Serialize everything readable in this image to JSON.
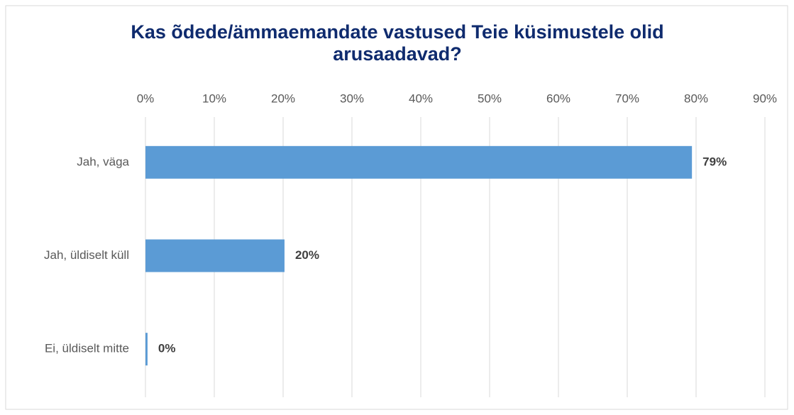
{
  "chart_data": {
    "type": "bar",
    "orientation": "horizontal",
    "title": "Kas õdede/ämmaemandate vastused Teie küsimustele olid arusaadavad?",
    "categories": [
      "Jah, väga",
      "Jah, üldiselt küll",
      "Ei, üldiselt mitte"
    ],
    "values": [
      79.4,
      20.2,
      0.3
    ],
    "value_labels": [
      "79%",
      "20%",
      "0%"
    ],
    "color": "#5b9bd5",
    "xlim": [
      0,
      90
    ],
    "xticks": [
      {
        "value": 0,
        "label": "0%"
      },
      {
        "value": 10,
        "label": "10%"
      },
      {
        "value": 20,
        "label": "20%"
      },
      {
        "value": 30,
        "label": "30%"
      },
      {
        "value": 40,
        "label": "40%"
      },
      {
        "value": 50,
        "label": "50%"
      },
      {
        "value": 60,
        "label": "60%"
      },
      {
        "value": 70,
        "label": "70%"
      },
      {
        "value": 80,
        "label": "80%"
      },
      {
        "value": 90,
        "label": "90%"
      }
    ],
    "grid": true
  }
}
